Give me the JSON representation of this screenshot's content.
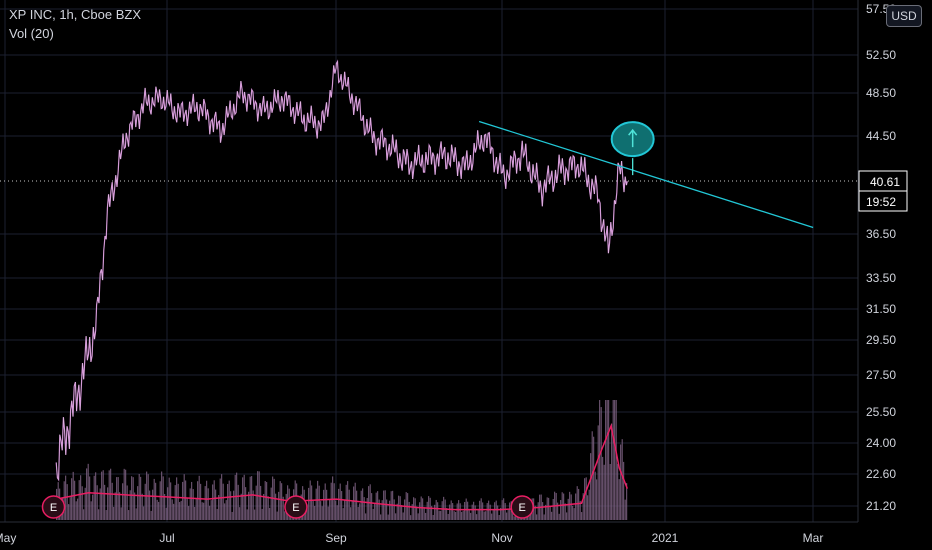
{
  "header": {
    "title": "XP INC, 1h, Cboe BZX",
    "volume_label": "Vol (20)",
    "currency": "USD"
  },
  "colors": {
    "background": "#000000",
    "grid": "#1c2030",
    "price": "#c77dcb",
    "volume": "#7b5f7f",
    "volume_ma": "#e91e63",
    "trendline": "#22c7d6",
    "target_fill": "#0f6f70",
    "target_arrow": "#4fe3d8",
    "axis_text": "#d1d4dc",
    "price_tag_bg": "#ffffff",
    "earnings": "#e91e63"
  },
  "chart_data": {
    "type": "line",
    "series": [
      {
        "x": [
          "2020-05-20",
          "2020-05-28",
          "2020-06-04",
          "2020-06-08",
          "2020-06-15",
          "2020-06-22",
          "2020-06-28",
          "2020-07-05",
          "2020-07-12",
          "2020-07-20",
          "2020-07-28",
          "2020-08-05",
          "2020-08-12",
          "2020-08-20",
          "2020-08-27",
          "2020-09-01",
          "2020-09-07",
          "2020-09-14",
          "2020-09-21",
          "2020-09-28",
          "2020-10-05",
          "2020-10-12",
          "2020-10-19",
          "2020-10-26",
          "2020-11-02",
          "2020-11-09",
          "2020-11-16",
          "2020-11-23",
          "2020-11-30",
          "2020-12-07",
          "2020-12-11",
          "2020-12-15",
          "2020-12-18"
        ],
        "values": [
          22.8,
          26.5,
          30.5,
          38.0,
          44.5,
          47.5,
          48.0,
          46.5,
          47.2,
          45.0,
          48.5,
          46.8,
          48.0,
          46.0,
          45.5,
          51.0,
          48.0,
          44.5,
          43.5,
          42.0,
          42.5,
          42.8,
          41.8,
          44.5,
          41.0,
          43.0,
          40.0,
          41.5,
          42.0,
          39.5,
          35.2,
          41.5,
          40.6
        ]
      },
      {
        "name": "Vol (20)",
        "x": [
          "2020-05-20",
          "2020-06-01",
          "2020-06-15",
          "2020-07-01",
          "2020-07-15",
          "2020-08-01",
          "2020-08-15",
          "2020-09-01",
          "2020-09-15",
          "2020-10-01",
          "2020-10-15",
          "2020-11-01",
          "2020-11-15",
          "2020-12-01",
          "2020-12-08",
          "2020-12-12",
          "2020-12-15",
          "2020-12-18"
        ],
        "values": [
          1.0,
          1.3,
          1.2,
          1.1,
          1.0,
          1.2,
          0.9,
          1.0,
          0.8,
          0.6,
          0.5,
          0.5,
          0.6,
          0.8,
          3.2,
          4.5,
          2.5,
          1.5
        ]
      }
    ],
    "trendline": {
      "start": {
        "x": "2020-10-24",
        "y": 45.8
      },
      "end": {
        "x": "2021-02-25",
        "y": 37.0
      }
    },
    "target_marker": {
      "x": "2020-12-20",
      "y": 44.2
    },
    "earnings_markers": [
      "2020-05-19",
      "2020-08-17",
      "2020-11-09"
    ],
    "x_tick_labels": [
      "May",
      "Jul",
      "Sep",
      "Nov",
      "2021",
      "Mar"
    ],
    "y_tick_labels": [
      "57.50",
      "52.50",
      "48.50",
      "44.50",
      "40.61",
      "36.50",
      "33.50",
      "31.50",
      "29.50",
      "27.50",
      "25.50",
      "24.00",
      "22.60",
      "21.20"
    ],
    "current_price": "40.61",
    "countdown": "19:52",
    "ylim": [
      20.6,
      57.5
    ],
    "y_scale": "log",
    "grid": true,
    "earnings_label": "E"
  }
}
